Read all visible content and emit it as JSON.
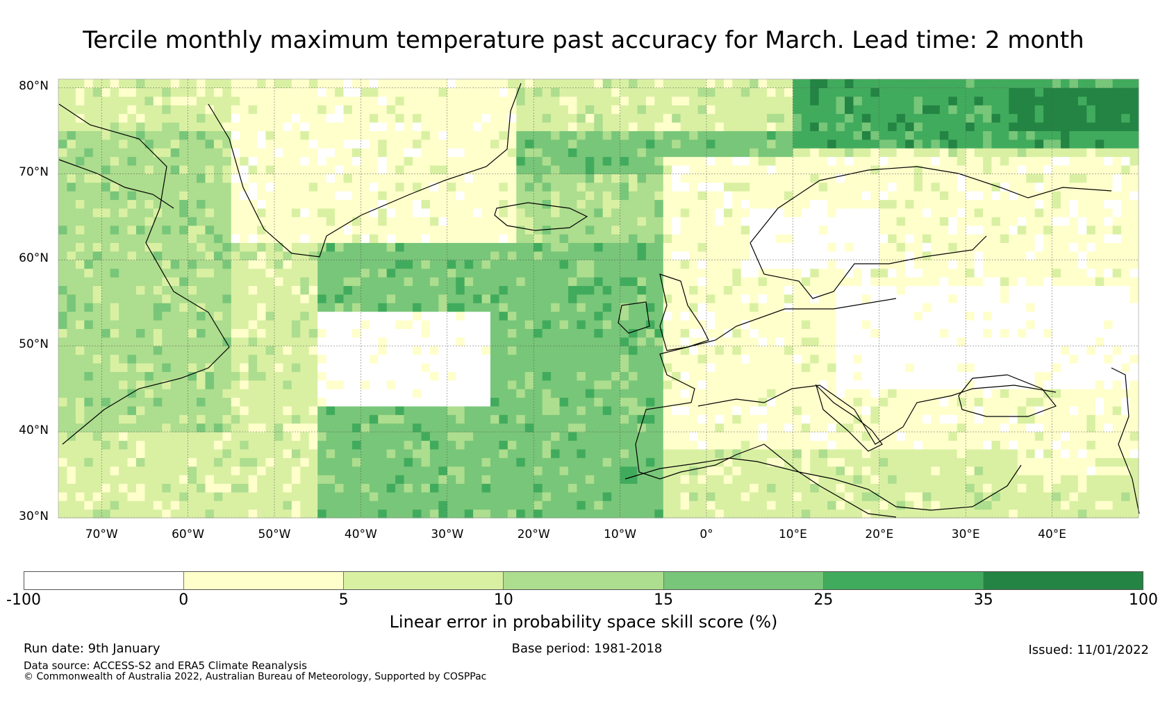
{
  "title": "Tercile monthly maximum temperature past accuracy for March. Lead time: 2 month",
  "map": {
    "lat_labels": [
      "80°N",
      "70°N",
      "60°N",
      "50°N",
      "40°N",
      "30°N"
    ],
    "lon_labels": [
      "70°W",
      "60°W",
      "50°W",
      "40°W",
      "30°W",
      "20°W",
      "10°W",
      "0°",
      "10°E",
      "20°E",
      "30°E",
      "40°E"
    ],
    "lon_range": [
      -75,
      50
    ],
    "lat_range": [
      30,
      81
    ],
    "regions": [
      {
        "name": "north-atlantic",
        "lon": [
          -45,
          -5
        ],
        "lat": [
          30,
          68
        ],
        "class": 4
      },
      {
        "name": "subpolar-atlantic",
        "lon": [
          -40,
          10
        ],
        "lat": [
          55,
          75
        ],
        "class": 4
      },
      {
        "name": "barents-sea",
        "lon": [
          10,
          50
        ],
        "lat": [
          73,
          81
        ],
        "class": 5
      },
      {
        "name": "barents-core",
        "lon": [
          35,
          50
        ],
        "lat": [
          75,
          80
        ],
        "class": 6
      },
      {
        "name": "greenland",
        "lon": [
          -55,
          -22
        ],
        "lat": [
          62,
          81
        ],
        "class": 1
      },
      {
        "name": "canada",
        "lon": [
          -75,
          -55
        ],
        "lat": [
          40,
          75
        ],
        "class": 3
      },
      {
        "name": "west-atlantic-white",
        "lon": [
          -45,
          -25
        ],
        "lat": [
          43,
          54
        ],
        "class": 0
      },
      {
        "name": "europe",
        "lon": [
          -5,
          50
        ],
        "lat": [
          35,
          72
        ],
        "class": 1
      },
      {
        "name": "russia-white",
        "lon": [
          15,
          50
        ],
        "lat": [
          45,
          57
        ],
        "class": 0
      },
      {
        "name": "scandinavia-white",
        "lon": [
          5,
          20
        ],
        "lat": [
          59,
          66
        ],
        "class": 0
      },
      {
        "name": "mediterranean",
        "lon": [
          -5,
          36
        ],
        "lat": [
          30,
          38
        ],
        "class": 2
      },
      {
        "name": "iceland-sea",
        "lon": [
          -22,
          -5
        ],
        "lat": [
          62,
          70
        ],
        "class": 3
      }
    ]
  },
  "colorbar": {
    "colors": [
      "#ffffff",
      "#ffffcc",
      "#d9f0a3",
      "#addd8e",
      "#78c679",
      "#41ab5d",
      "#238443"
    ],
    "ticks": [
      "-100",
      "0",
      "5",
      "10",
      "15",
      "25",
      "35",
      "100"
    ],
    "label": "Linear error in probability space skill score (%)"
  },
  "footer": {
    "run_date": "Run date: 9th January",
    "base_period": "Base period: 1981-2018",
    "issued": "Issued: 11/01/2022",
    "data_source": "Data source: ACCESS-S2 and ERA5 Climate Reanalysis",
    "copyright": "© Commonwealth of Australia 2022, Australian Bureau of Meteorology, Supported by COSPPac"
  }
}
